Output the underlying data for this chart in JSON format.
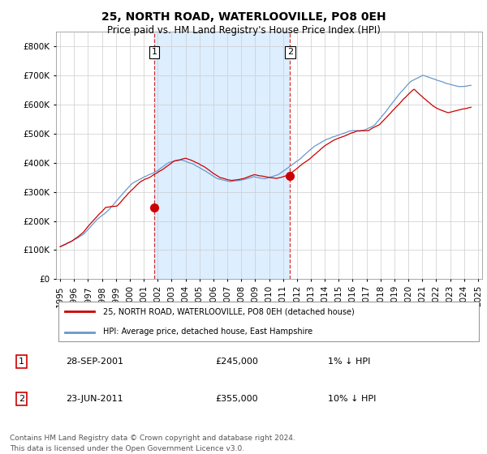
{
  "title": "25, NORTH ROAD, WATERLOOVILLE, PO8 0EH",
  "subtitle": "Price paid vs. HM Land Registry's House Price Index (HPI)",
  "legend_line1": "25, NORTH ROAD, WATERLOOVILLE, PO8 0EH (detached house)",
  "legend_line2": "HPI: Average price, detached house, East Hampshire",
  "annotation1_label": "1",
  "annotation1_date": "28-SEP-2001",
  "annotation1_price": "£245,000",
  "annotation1_hpi": "1% ↓ HPI",
  "annotation1_year": 2001.75,
  "annotation1_value": 245000,
  "annotation2_label": "2",
  "annotation2_date": "23-JUN-2011",
  "annotation2_price": "£355,000",
  "annotation2_hpi": "10% ↓ HPI",
  "annotation2_year": 2011.5,
  "annotation2_value": 355000,
  "footer_line1": "Contains HM Land Registry data © Crown copyright and database right 2024.",
  "footer_line2": "This data is licensed under the Open Government Licence v3.0.",
  "red_color": "#cc0000",
  "blue_color": "#6699cc",
  "blue_fill_color": "#ddeeff",
  "background_color": "#ffffff",
  "grid_color": "#cccccc",
  "ylim": [
    0,
    850000
  ],
  "yticks": [
    0,
    100000,
    200000,
    300000,
    400000,
    500000,
    600000,
    700000,
    800000
  ],
  "xlim_min": 1994.7,
  "xlim_max": 2025.3
}
